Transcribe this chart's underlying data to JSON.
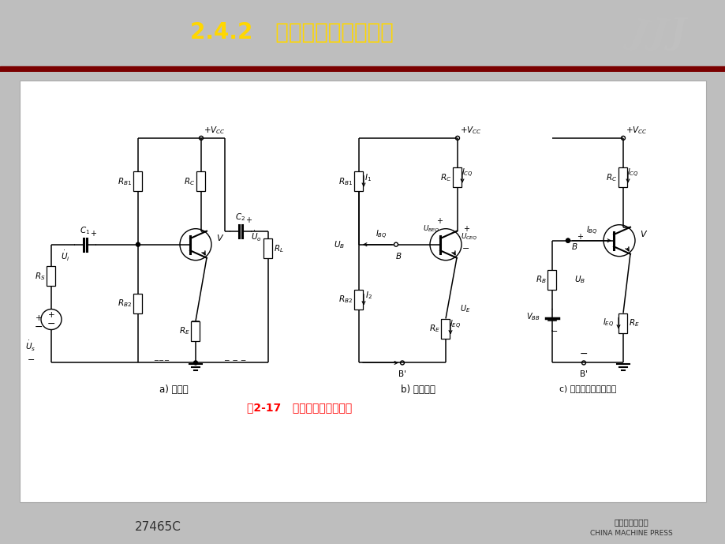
{
  "title": "2.4.2   分压式偏置放大电路",
  "title_color": "#FFD700",
  "header_bg": "#CC0000",
  "header_dark": "#990000",
  "body_bg": "#FFFFFF",
  "content_bg": "#F0F0F0",
  "footer_bg": "#BEBEBE",
  "footer_text": "27465C",
  "publisher_line1": "机械工业出版社",
  "publisher_line2": "CHINA MACHINE PRESS",
  "caption_red": "图2-17   分压式偏置放大电路",
  "sub_a": "a) 电路图",
  "sub_b": "b) 直流通路",
  "sub_c": "c) 戴维宁等效直流通路"
}
